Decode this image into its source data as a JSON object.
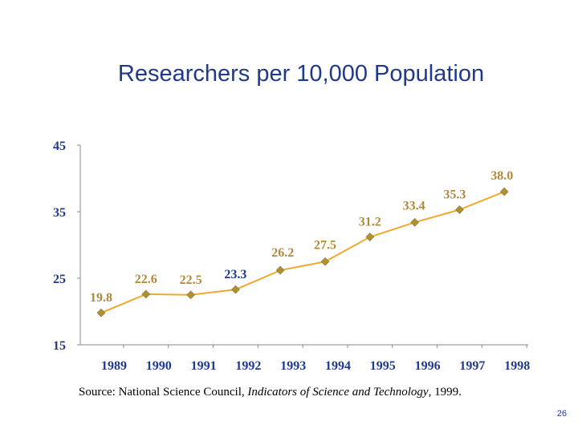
{
  "chart_data": {
    "type": "line",
    "title": "Researchers per 10,000 Population",
    "categories": [
      "1989",
      "1990",
      "1991",
      "1992",
      "1993",
      "1994",
      "1995",
      "1996",
      "1997",
      "1998"
    ],
    "series": [
      {
        "values": [
          19.8,
          22.6,
          22.5,
          23.3,
          26.2,
          27.5,
          31.2,
          33.4,
          35.3,
          38.0
        ],
        "labels": [
          "19.8",
          "22.6",
          "22.5",
          "23.3",
          "26.2",
          "27.5",
          "31.2",
          "33.4",
          "35.3",
          "38.0"
        ],
        "color": "#f0a830",
        "marker_color": "#b09030"
      }
    ],
    "ylim": [
      15,
      45
    ],
    "yticks": [
      "15",
      "25",
      "35",
      "45"
    ],
    "grid": false,
    "xlabel": "",
    "ylabel": ""
  },
  "colors": {
    "title": "#1f3a8a",
    "axis_text": "#1f3a8a",
    "data_label": "#b08a3a",
    "emphasis_label": "#1f3a8a"
  },
  "source": {
    "prefix": "Source: National Science Council, ",
    "italic": "Indicators of Science and Technology",
    "suffix": ", 1999."
  },
  "page_number": "26"
}
